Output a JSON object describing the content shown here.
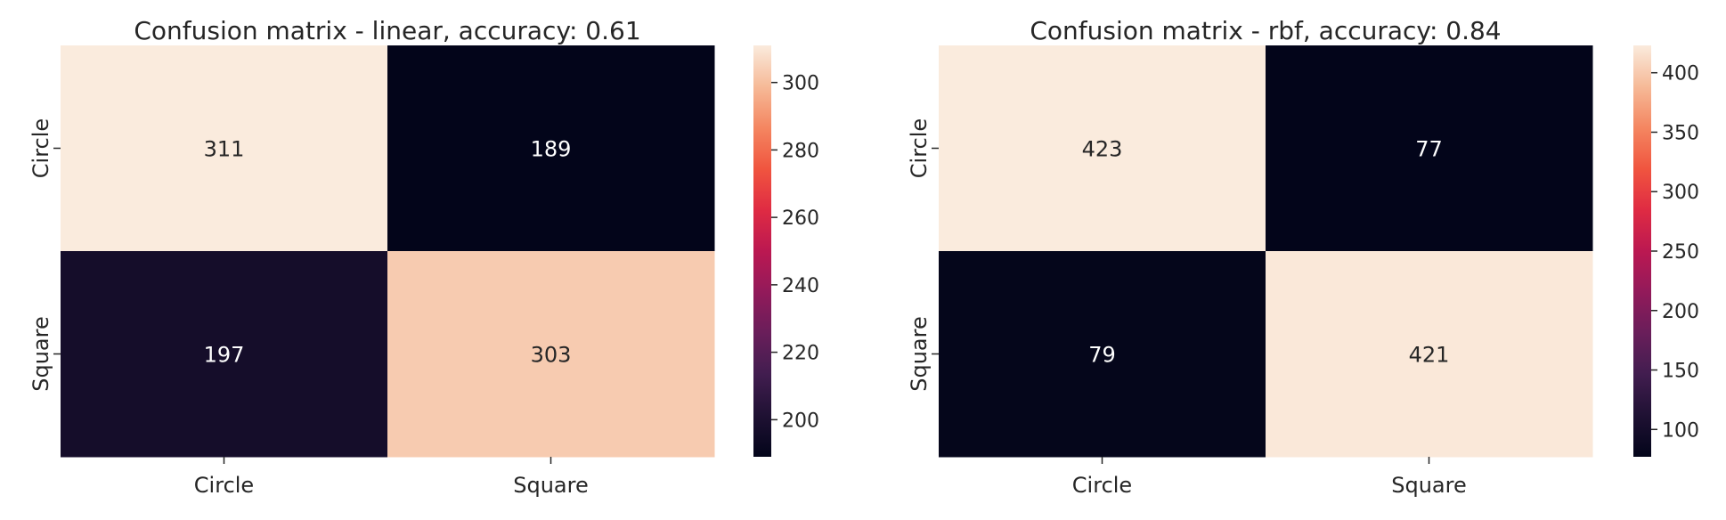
{
  "chart_data": [
    {
      "type": "heatmap",
      "title": "Confusion matrix - linear, accuracy: 0.61",
      "row_labels": [
        "Circle",
        "Square"
      ],
      "col_labels": [
        "Circle",
        "Square"
      ],
      "values": [
        [
          311,
          189
        ],
        [
          197,
          303
        ]
      ],
      "colorbar": {
        "range": [
          189,
          311
        ],
        "ticks": [
          200,
          220,
          240,
          260,
          280,
          300
        ]
      },
      "colormap": "rocket"
    },
    {
      "type": "heatmap",
      "title": "Confusion matrix - rbf, accuracy: 0.84",
      "row_labels": [
        "Circle",
        "Square"
      ],
      "col_labels": [
        "Circle",
        "Square"
      ],
      "values": [
        [
          423,
          77
        ],
        [
          79,
          421
        ]
      ],
      "colorbar": {
        "range": [
          77,
          423
        ],
        "ticks": [
          100,
          150,
          200,
          250,
          300,
          350,
          400
        ]
      },
      "colormap": "rocket"
    }
  ]
}
